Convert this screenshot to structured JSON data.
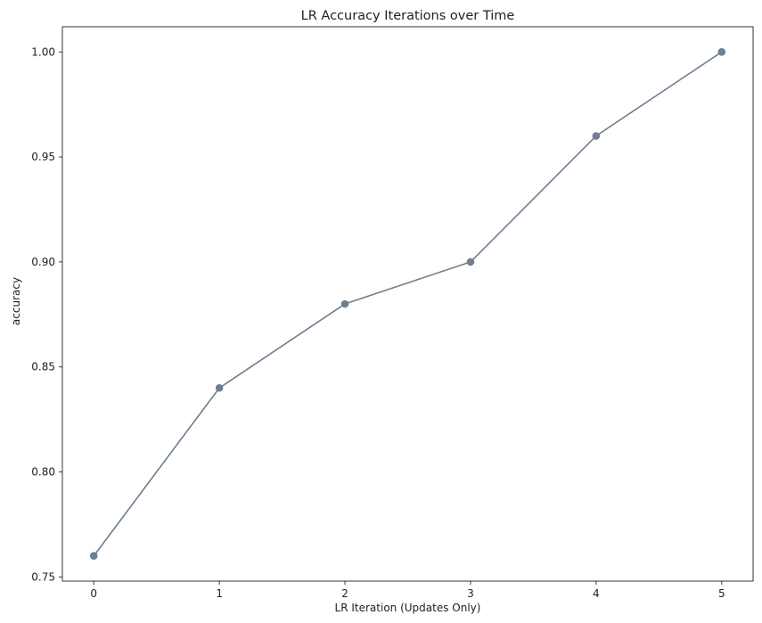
{
  "chart_data": {
    "type": "line",
    "title": "LR Accuracy Iterations over Time",
    "xlabel": "LR Iteration (Updates Only)",
    "ylabel": "accuracy",
    "x": [
      0,
      1,
      2,
      3,
      4,
      5
    ],
    "series": [
      {
        "values": [
          0.76,
          0.84,
          0.88,
          0.9,
          0.96,
          1.0
        ],
        "color": "#6e7f8f",
        "marker": "circle"
      }
    ],
    "xticks": [
      "0",
      "1",
      "2",
      "3",
      "4",
      "5"
    ],
    "yticks": [
      "0.75",
      "0.80",
      "0.85",
      "0.90",
      "0.95",
      "1.00"
    ],
    "xlim": [
      -0.25,
      5.25
    ],
    "ylim": [
      0.748,
      1.012
    ],
    "grid": false,
    "legend": "none"
  }
}
